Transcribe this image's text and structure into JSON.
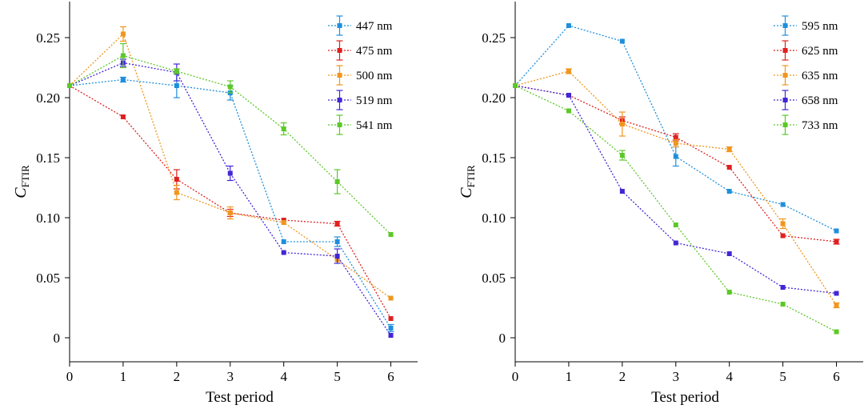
{
  "chart_data": [
    {
      "type": "line",
      "xlabel": "Test period",
      "ylabel_main": "C",
      "ylabel_sub": "FTIR",
      "x": [
        0,
        1,
        2,
        3,
        4,
        5,
        6
      ],
      "xlim": [
        0,
        6.5
      ],
      "ylim": [
        -0.02,
        0.28
      ],
      "xticks": [
        "0",
        "1",
        "2",
        "3",
        "4",
        "5",
        "6"
      ],
      "yticks": [
        0,
        0.05,
        0.1,
        0.15,
        0.2,
        0.25
      ],
      "ytick_labels": [
        "0",
        "0.05",
        "0.10",
        "0.15",
        "0.20",
        "0.25"
      ],
      "grid": false,
      "legend": "top-right",
      "series": [
        {
          "name": "447 nm",
          "color": "#1f8fdc",
          "values": [
            0.21,
            0.215,
            0.21,
            0.204,
            0.08,
            0.08,
            0.008
          ],
          "errors": [
            0,
            0.002,
            0.01,
            0.006,
            0,
            0.004,
            0.003
          ]
        },
        {
          "name": "475 nm",
          "color": "#e02020",
          "values": [
            0.21,
            0.184,
            0.132,
            0.104,
            0.098,
            0.095,
            0.016
          ],
          "errors": [
            0,
            0,
            0.008,
            0.003,
            0,
            0.002,
            0
          ]
        },
        {
          "name": "500 nm",
          "color": "#f0961e",
          "values": [
            0.21,
            0.253,
            0.121,
            0.104,
            0.096,
            0.065,
            0.033
          ],
          "errors": [
            0,
            0.006,
            0.006,
            0.005,
            0,
            0,
            0
          ]
        },
        {
          "name": "519 nm",
          "color": "#4326d4",
          "values": [
            0.21,
            0.229,
            0.221,
            0.137,
            0.071,
            0.068,
            0.002
          ],
          "errors": [
            0,
            0.003,
            0.007,
            0.006,
            0,
            0.006,
            0
          ]
        },
        {
          "name": "541 nm",
          "color": "#5cc828",
          "values": [
            0.21,
            0.235,
            0.222,
            0.209,
            0.174,
            0.13,
            0.086
          ],
          "errors": [
            0,
            0.01,
            0.002,
            0.005,
            0.005,
            0.01,
            0
          ]
        }
      ]
    },
    {
      "type": "line",
      "xlabel": "Test period",
      "ylabel_main": "C",
      "ylabel_sub": "FTIR",
      "x": [
        0,
        1,
        2,
        3,
        4,
        5,
        6
      ],
      "xlim": [
        0,
        6.5
      ],
      "ylim": [
        -0.02,
        0.28
      ],
      "xticks": [
        "0",
        "1",
        "2",
        "3",
        "4",
        "5",
        "6"
      ],
      "yticks": [
        0,
        0.05,
        0.1,
        0.15,
        0.2,
        0.25
      ],
      "ytick_labels": [
        "0",
        "0.05",
        "0.10",
        "0.15",
        "0.20",
        "0.25"
      ],
      "grid": false,
      "legend": "top-right",
      "series": [
        {
          "name": "595 nm",
          "color": "#1f8fdc",
          "values": [
            0.21,
            0.26,
            0.247,
            0.151,
            0.122,
            0.111,
            0.089
          ],
          "errors": [
            0,
            0,
            0,
            0.008,
            0,
            0,
            0
          ]
        },
        {
          "name": "625 nm",
          "color": "#e02020",
          "values": [
            0.21,
            0.202,
            0.181,
            0.167,
            0.142,
            0.085,
            0.08
          ],
          "errors": [
            0,
            0,
            0.003,
            0.003,
            0,
            0,
            0.002
          ]
        },
        {
          "name": "635 nm",
          "color": "#f0961e",
          "values": [
            0.21,
            0.222,
            0.178,
            0.162,
            0.157,
            0.095,
            0.027
          ],
          "errors": [
            0,
            0.002,
            0.01,
            0.003,
            0.002,
            0.004,
            0.002
          ]
        },
        {
          "name": "658 nm",
          "color": "#4326d4",
          "values": [
            0.21,
            0.202,
            0.122,
            0.079,
            0.07,
            0.042,
            0.037
          ],
          "errors": [
            0,
            0,
            0,
            0,
            0,
            0,
            0
          ]
        },
        {
          "name": "733 nm",
          "color": "#5cc828",
          "values": [
            0.21,
            0.189,
            0.152,
            0.094,
            0.038,
            0.028,
            0.005
          ],
          "errors": [
            0,
            0,
            0.004,
            0,
            0,
            0,
            0
          ]
        }
      ]
    }
  ]
}
